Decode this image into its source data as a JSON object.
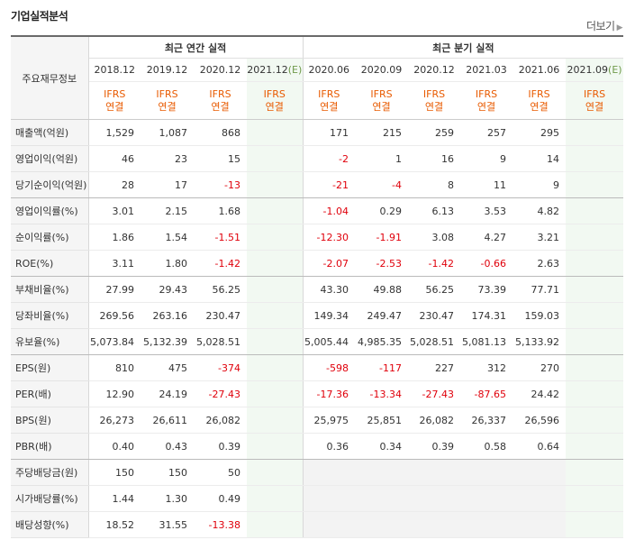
{
  "header": {
    "title": "기업실적분석",
    "more_label": "더보기"
  },
  "table": {
    "label_header": "주요재무정보",
    "annual_header": "최근 연간 실적",
    "quarter_header": "최근 분기 실적",
    "periods": [
      "2018.12",
      "2019.12",
      "2020.12",
      "2021.12(E)",
      "2020.06",
      "2020.09",
      "2020.12",
      "2021.03",
      "2021.06",
      "2021.09(E)"
    ],
    "ifrs_top": "IFRS",
    "ifrs_bottom": "연결",
    "rows": [
      {
        "label": "매출액(억원)",
        "cells": [
          "1,529",
          "1,087",
          "868",
          "",
          "171",
          "215",
          "259",
          "257",
          "295",
          ""
        ]
      },
      {
        "label": "영업이익(억원)",
        "cells": [
          "46",
          "23",
          "15",
          "",
          "-2",
          "1",
          "16",
          "9",
          "14",
          ""
        ]
      },
      {
        "label": "당기순이익(억원)",
        "cells": [
          "28",
          "17",
          "-13",
          "",
          "-21",
          "-4",
          "8",
          "11",
          "9",
          ""
        ]
      },
      {
        "label": "영업이익률(%)",
        "cells": [
          "3.01",
          "2.15",
          "1.68",
          "",
          "-1.04",
          "0.29",
          "6.13",
          "3.53",
          "4.82",
          ""
        ]
      },
      {
        "label": "순이익률(%)",
        "cells": [
          "1.86",
          "1.54",
          "-1.51",
          "",
          "-12.30",
          "-1.91",
          "3.08",
          "4.27",
          "3.21",
          ""
        ]
      },
      {
        "label": "ROE(%)",
        "cells": [
          "3.11",
          "1.80",
          "-1.42",
          "",
          "-2.07",
          "-2.53",
          "-1.42",
          "-0.66",
          "2.63",
          ""
        ]
      },
      {
        "label": "부채비율(%)",
        "cells": [
          "27.99",
          "29.43",
          "56.25",
          "",
          "43.30",
          "49.88",
          "56.25",
          "73.39",
          "77.71",
          ""
        ]
      },
      {
        "label": "당좌비율(%)",
        "cells": [
          "269.56",
          "263.16",
          "230.47",
          "",
          "149.34",
          "249.47",
          "230.47",
          "174.31",
          "159.03",
          ""
        ]
      },
      {
        "label": "유보율(%)",
        "cells": [
          "5,073.84",
          "5,132.39",
          "5,028.51",
          "",
          "5,005.44",
          "4,985.35",
          "5,028.51",
          "5,081.13",
          "5,133.92",
          ""
        ]
      },
      {
        "label": "EPS(원)",
        "cells": [
          "810",
          "475",
          "-374",
          "",
          "-598",
          "-117",
          "227",
          "312",
          "270",
          ""
        ]
      },
      {
        "label": "PER(배)",
        "cells": [
          "12.90",
          "24.19",
          "-27.43",
          "",
          "-17.36",
          "-13.34",
          "-27.43",
          "-87.65",
          "24.42",
          ""
        ]
      },
      {
        "label": "BPS(원)",
        "cells": [
          "26,273",
          "26,611",
          "26,082",
          "",
          "25,975",
          "25,851",
          "26,082",
          "26,337",
          "26,596",
          ""
        ]
      },
      {
        "label": "PBR(배)",
        "cells": [
          "0.40",
          "0.43",
          "0.39",
          "",
          "0.36",
          "0.34",
          "0.39",
          "0.58",
          "0.64",
          ""
        ]
      },
      {
        "label": "주당배당금(원)",
        "cells": [
          "150",
          "150",
          "50",
          "",
          "",
          "",
          "",
          "",
          "",
          ""
        ]
      },
      {
        "label": "시가배당률(%)",
        "cells": [
          "1.44",
          "1.30",
          "0.49",
          "",
          "",
          "",
          "",
          "",
          "",
          ""
        ]
      },
      {
        "label": "배당성향(%)",
        "cells": [
          "18.52",
          "31.55",
          "-13.38",
          "",
          "",
          "",
          "",
          "",
          "",
          ""
        ]
      }
    ]
  },
  "colors": {
    "negative": "#e0000b",
    "ifrs": "#e85a00",
    "estimate_bg": "#f2f9f2"
  }
}
